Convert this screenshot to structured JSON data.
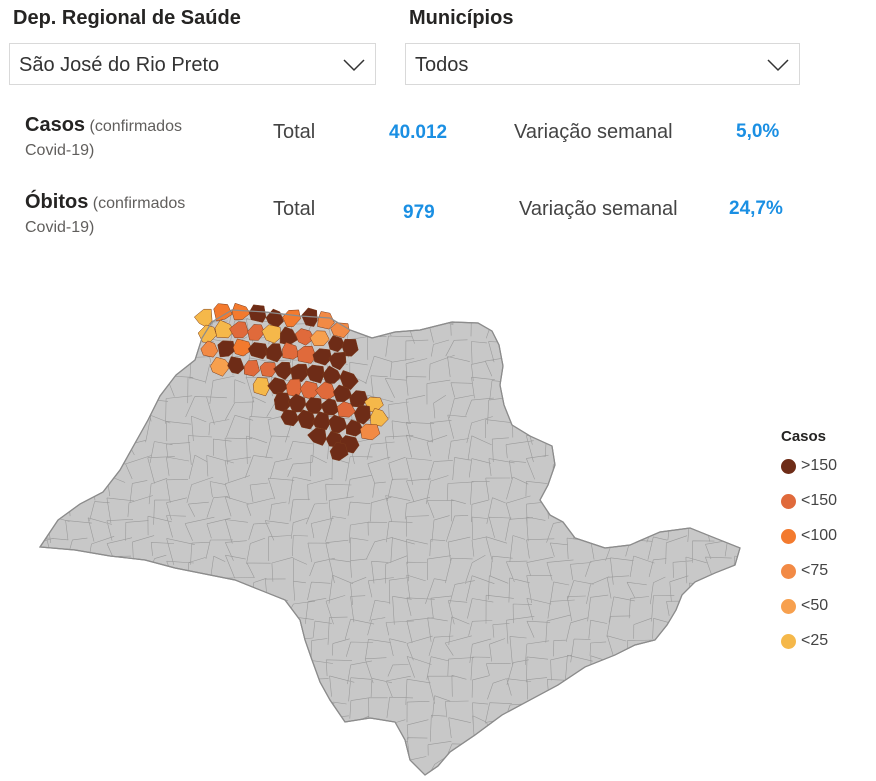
{
  "filters": {
    "regional": {
      "title": "Dep. Regional de Saúde",
      "value": "São José do Rio Preto"
    },
    "municipios": {
      "title": "Municípios",
      "value": "Todos"
    }
  },
  "metrics": {
    "casos": {
      "label": "Casos",
      "sub1": "(confirmados",
      "sub2": "Covid-19)",
      "total_label": "Total",
      "total_value": "40.012",
      "var_label": "Variação semanal",
      "var_value": "5,0%"
    },
    "obitos": {
      "label": "Óbitos",
      "sub1": "(confirmados",
      "sub2": "Covid-19)",
      "total_label": "Total",
      "total_value": "979",
      "var_label": "Variação semanal",
      "var_value": "24,7%"
    }
  },
  "legend": {
    "title": "Casos",
    "items": [
      {
        "label": ">150",
        "color": "#6e2c17"
      },
      {
        "label": "<150",
        "color": "#e06a3b"
      },
      {
        "label": "<100",
        "color": "#f37a2e"
      },
      {
        "label": "<75",
        "color": "#f28a45"
      },
      {
        "label": "<50",
        "color": "#f7a04e"
      },
      {
        "label": "<25",
        "color": "#f5b84a"
      }
    ]
  },
  "map": {
    "base_color": "#c8c8c8",
    "border_color": "#9a9a9a",
    "highlighted_region": "São José do Rio Preto"
  },
  "colors": {
    "accent": "#1a8fe3"
  }
}
